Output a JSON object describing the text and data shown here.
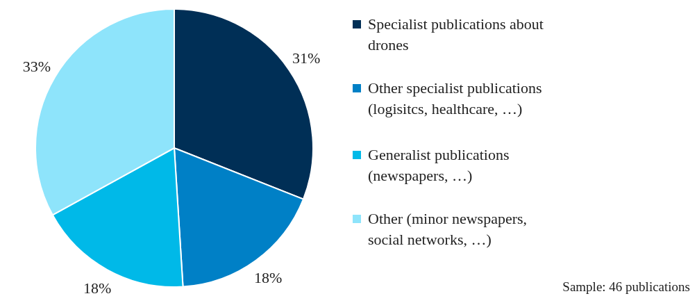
{
  "chart_data": {
    "type": "pie",
    "categories": [
      "Specialist publications about drones",
      "Other specialist publications (logisitcs, healthcare, …)",
      "Generalist publications (newspapers, …)",
      "Other (minor newspapers, social networks, …)"
    ],
    "values": [
      31,
      18,
      18,
      33
    ],
    "value_labels": [
      "31%",
      "18%",
      "18%",
      "33%"
    ],
    "colors": [
      "#002f56",
      "#0080c6",
      "#00b9e8",
      "#8ee4fb"
    ],
    "legend": "right",
    "annotations": [
      "Sample: 46 publications"
    ]
  }
}
